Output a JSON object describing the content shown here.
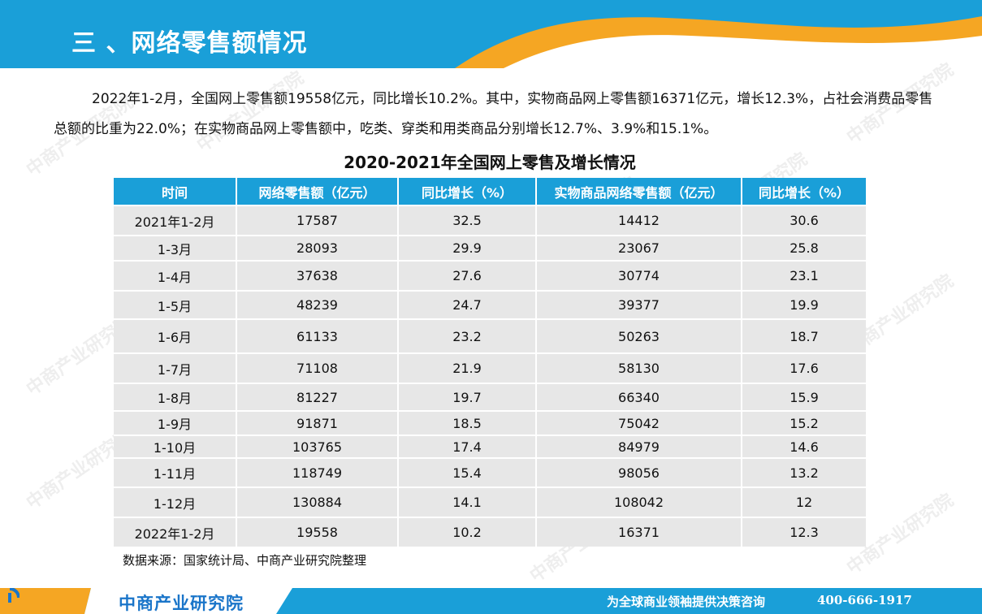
{
  "header": {
    "title": "三 、网络零售额情况"
  },
  "intro": {
    "text": "2022年1-2月，全国网上零售额19558亿元，同比增长10.2%。其中，实物商品网上零售额16371亿元，增长12.3%，占社会消费品零售总额的比重为22.0%；在实物商品网上零售额中，吃类、穿类和用类商品分别增长12.7%、3.9%和15.1%。"
  },
  "table": {
    "title": "2020-2021年全国网上零售及增长情况",
    "headers": [
      "时间",
      "网络零售额（亿元）",
      "同比增长（%）",
      "实物商品网络零售额（亿元）",
      "同比增长（%）"
    ],
    "rows": [
      [
        "2021年1-2月",
        "17587",
        "32.5",
        "14412",
        "30.6"
      ],
      [
        "1-3月",
        "28093",
        "29.9",
        "23067",
        "25.8"
      ],
      [
        "1-4月",
        "37638",
        "27.6",
        "30774",
        "23.1"
      ],
      [
        "1-5月",
        "48239",
        "24.7",
        "39377",
        "19.9"
      ],
      [
        "1-6月",
        "61133",
        "23.2",
        "50263",
        "18.7"
      ],
      [
        "1-7月",
        "71108",
        "21.9",
        "58130",
        "17.6"
      ],
      [
        "1-8月",
        "81227",
        "19.7",
        "66340",
        "15.9"
      ],
      [
        "1-9月",
        "91871",
        "18.5",
        "75042",
        "15.2"
      ],
      [
        "1-10月",
        "103765",
        "17.4",
        "84979",
        "14.6"
      ],
      [
        "1-11月",
        "118749",
        "15.4",
        "98056",
        "13.2"
      ],
      [
        "1-12月",
        "130884",
        "14.1",
        "108042",
        "12"
      ],
      [
        "2022年1-2月",
        "19558",
        "10.2",
        "16371",
        "12.3"
      ]
    ],
    "source": "数据来源：国家统计局、中商产业研究院整理"
  },
  "footer": {
    "logo": "中商产业研究院",
    "slogan": "为全球商业领袖提供决策咨询",
    "phone": "400-666-1917"
  },
  "watermark": "中商产业研究院",
  "colors": {
    "header_blue": "#1a9fd8",
    "accent_orange": "#f5a623",
    "table_header": "#1a9fd8",
    "table_cell": "#e7e7e7",
    "logo_blue": "#1a75c9"
  }
}
